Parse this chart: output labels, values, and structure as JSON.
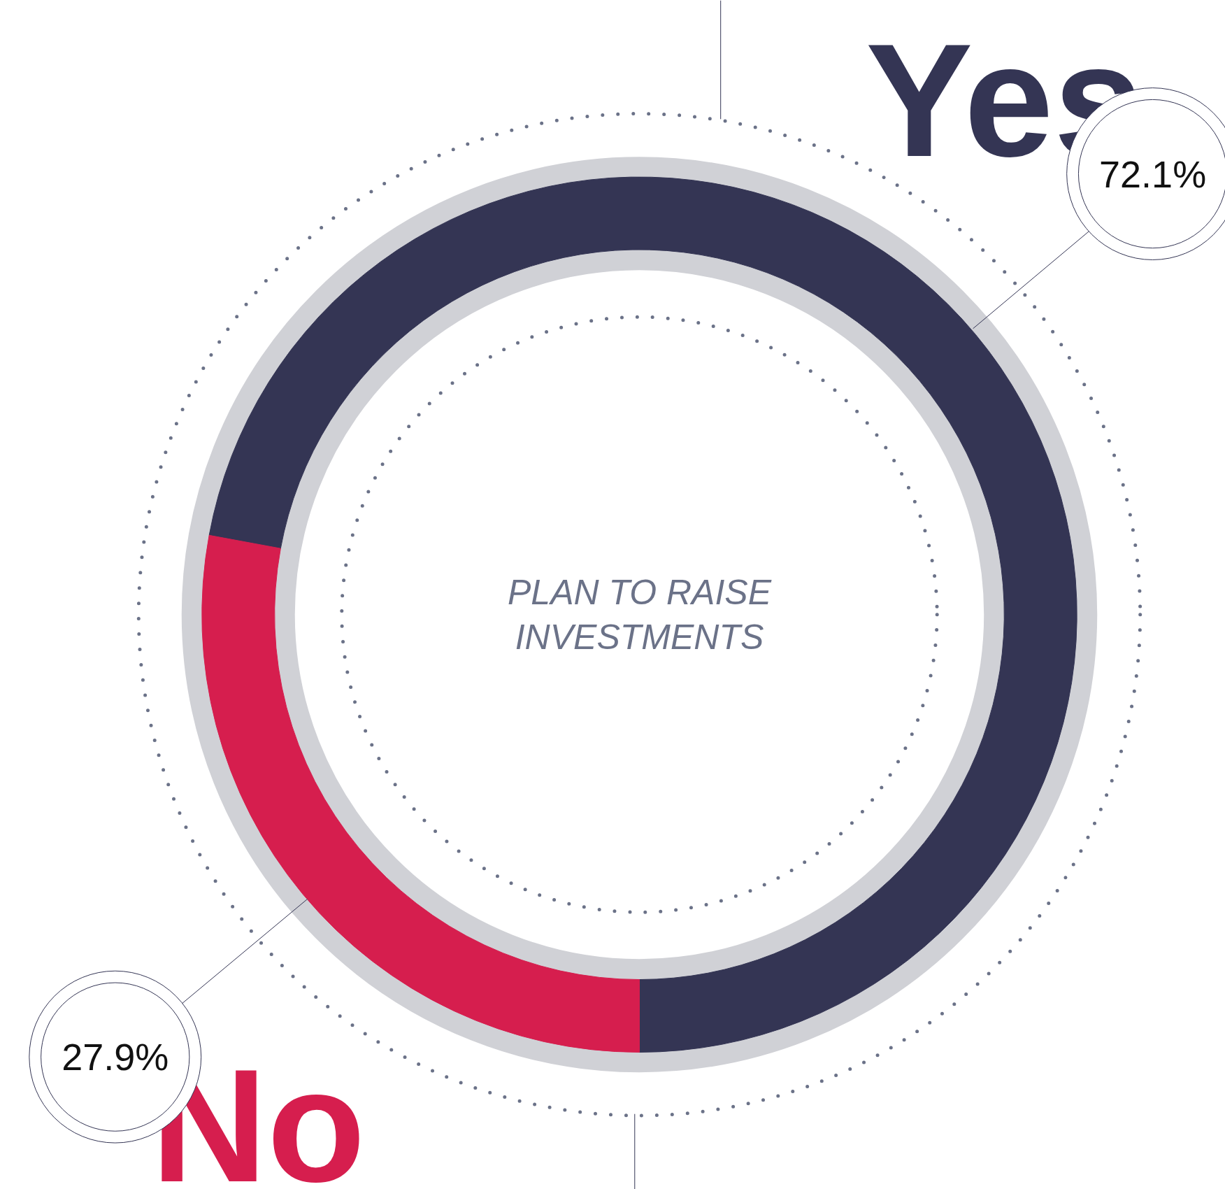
{
  "chart_data": {
    "type": "donut",
    "title": "PLAN TO RAISE INVESTMENTS",
    "categories": [
      "Yes",
      "No"
    ],
    "values": [
      72.1,
      27.9
    ],
    "colors": [
      "#343554",
      "#d61e4e"
    ],
    "value_labels": [
      "72.1%",
      "27.9%"
    ]
  }
}
